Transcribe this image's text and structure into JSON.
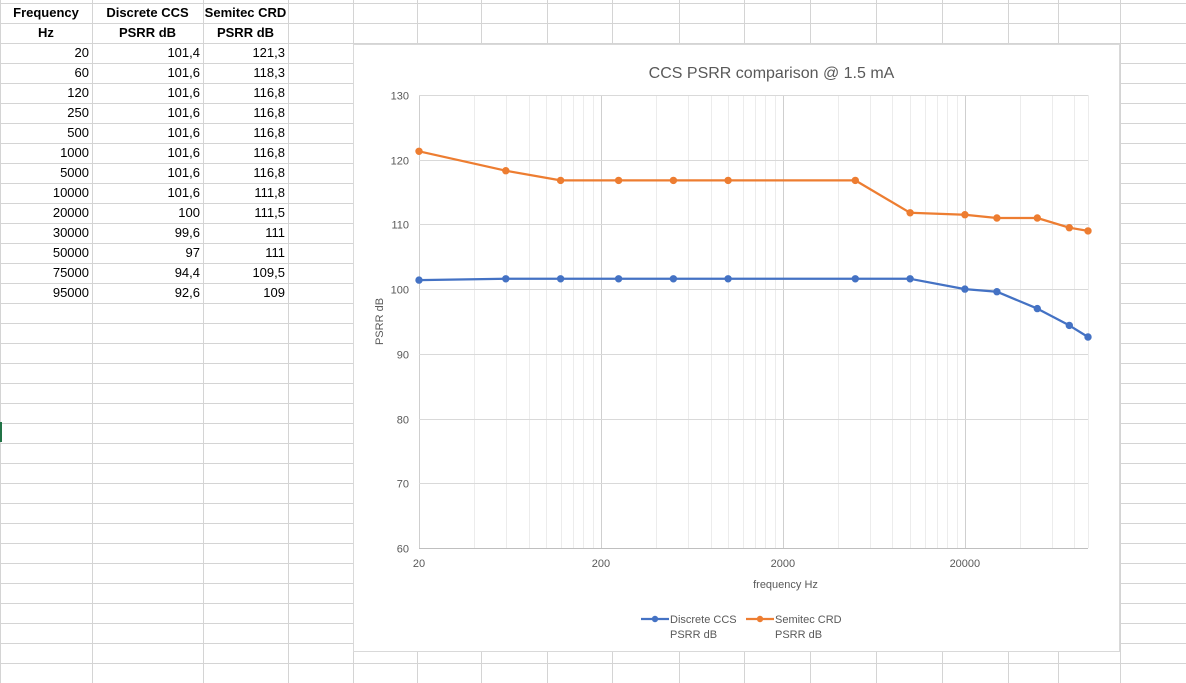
{
  "table": {
    "headers": [
      [
        "Frequency",
        "Hz"
      ],
      [
        "Discrete CCS",
        "PSRR dB"
      ],
      [
        "Semitec CRD",
        "PSRR dB"
      ]
    ],
    "rows": [
      [
        "20",
        "101,4",
        "121,3"
      ],
      [
        "60",
        "101,6",
        "118,3"
      ],
      [
        "120",
        "101,6",
        "116,8"
      ],
      [
        "250",
        "101,6",
        "116,8"
      ],
      [
        "500",
        "101,6",
        "116,8"
      ],
      [
        "1000",
        "101,6",
        "116,8"
      ],
      [
        "5000",
        "101,6",
        "116,8"
      ],
      [
        "10000",
        "101,6",
        "111,8"
      ],
      [
        "20000",
        "100",
        "111,5"
      ],
      [
        "30000",
        "99,6",
        "111"
      ],
      [
        "50000",
        "97",
        "111"
      ],
      [
        "75000",
        "94,4",
        "109,5"
      ],
      [
        "95000",
        "92,6",
        "109"
      ]
    ]
  },
  "chart_data": {
    "type": "line",
    "title": "CCS PSRR comparison @ 1.5 mA",
    "xlabel": "frequency Hz",
    "ylabel": "PSRR dB",
    "x_categories": [
      "20",
      "60",
      "120",
      "250",
      "500",
      "1000",
      "5000",
      "10000",
      "20000",
      "30000",
      "50000",
      "75000",
      "95000"
    ],
    "x_ticks": [
      "20",
      "200",
      "2000",
      "20000"
    ],
    "y_ticks": [
      "60",
      "70",
      "80",
      "90",
      "100",
      "110",
      "120",
      "130"
    ],
    "ylim": [
      60,
      130
    ],
    "grid": true,
    "legend_position": "bottom",
    "series": [
      {
        "name": "Discrete CCS PSRR dB",
        "legend_lines": [
          "Discrete CCS",
          "PSRR dB"
        ],
        "color": "#4472c4",
        "values": [
          101.4,
          101.6,
          101.6,
          101.6,
          101.6,
          101.6,
          101.6,
          101.6,
          100,
          99.6,
          97,
          94.4,
          92.6
        ]
      },
      {
        "name": "Semitec CRD PSRR dB",
        "legend_lines": [
          "Semitec CRD",
          "PSRR dB"
        ],
        "color": "#ed7d31",
        "values": [
          121.3,
          118.3,
          116.8,
          116.8,
          116.8,
          116.8,
          116.8,
          111.8,
          111.5,
          111,
          111,
          109.5,
          109
        ]
      }
    ]
  }
}
